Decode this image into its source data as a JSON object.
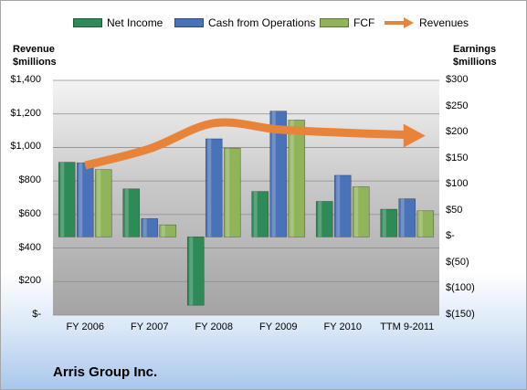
{
  "chart_data": {
    "type": "bar",
    "categories": [
      "FY 2006",
      "FY 2007",
      "FY 2008",
      "FY 2009",
      "FY 2010",
      "TTM 9-2011"
    ],
    "series": [
      {
        "name": "Net Income",
        "axis": "right",
        "color": "#2e8b57",
        "values": [
          143,
          92,
          -131,
          87,
          68,
          53
        ]
      },
      {
        "name": "Cash from Operations",
        "axis": "right",
        "color": "#4a72b8",
        "values": [
          142,
          35,
          188,
          241,
          118,
          73
        ]
      },
      {
        "name": "FCF",
        "axis": "right",
        "color": "#8fb45a",
        "values": [
          129,
          23,
          170,
          224,
          96,
          50
        ]
      },
      {
        "name": "Revenues",
        "axis": "left",
        "type": "line",
        "color": "#e8843a",
        "values": [
          893,
          992,
          1145,
          1107,
          1088,
          1075
        ]
      }
    ],
    "left_axis": {
      "title_line1": "Revenue",
      "title_line2": "$millions",
      "ylim": [
        0,
        1400
      ],
      "ticks": [
        0,
        200,
        400,
        600,
        800,
        1000,
        1200,
        1400
      ],
      "tick_labels": [
        "$-",
        "$200",
        "$400",
        "$600",
        "$800",
        "$1,000",
        "$1,200",
        "$1,400"
      ]
    },
    "right_axis": {
      "title_line1": "Earnings",
      "title_line2": "$millions",
      "ylim": [
        -150,
        300
      ],
      "ticks": [
        -150,
        -100,
        -50,
        0,
        50,
        100,
        150,
        200,
        250,
        300
      ],
      "tick_labels": [
        "$(150)",
        "$(100)",
        "$(50)",
        "$-",
        "$50",
        "$100",
        "$150",
        "$200",
        "$250",
        "$300"
      ]
    },
    "legend_position": "top",
    "grid": true
  },
  "company_name": "Arris Group Inc."
}
